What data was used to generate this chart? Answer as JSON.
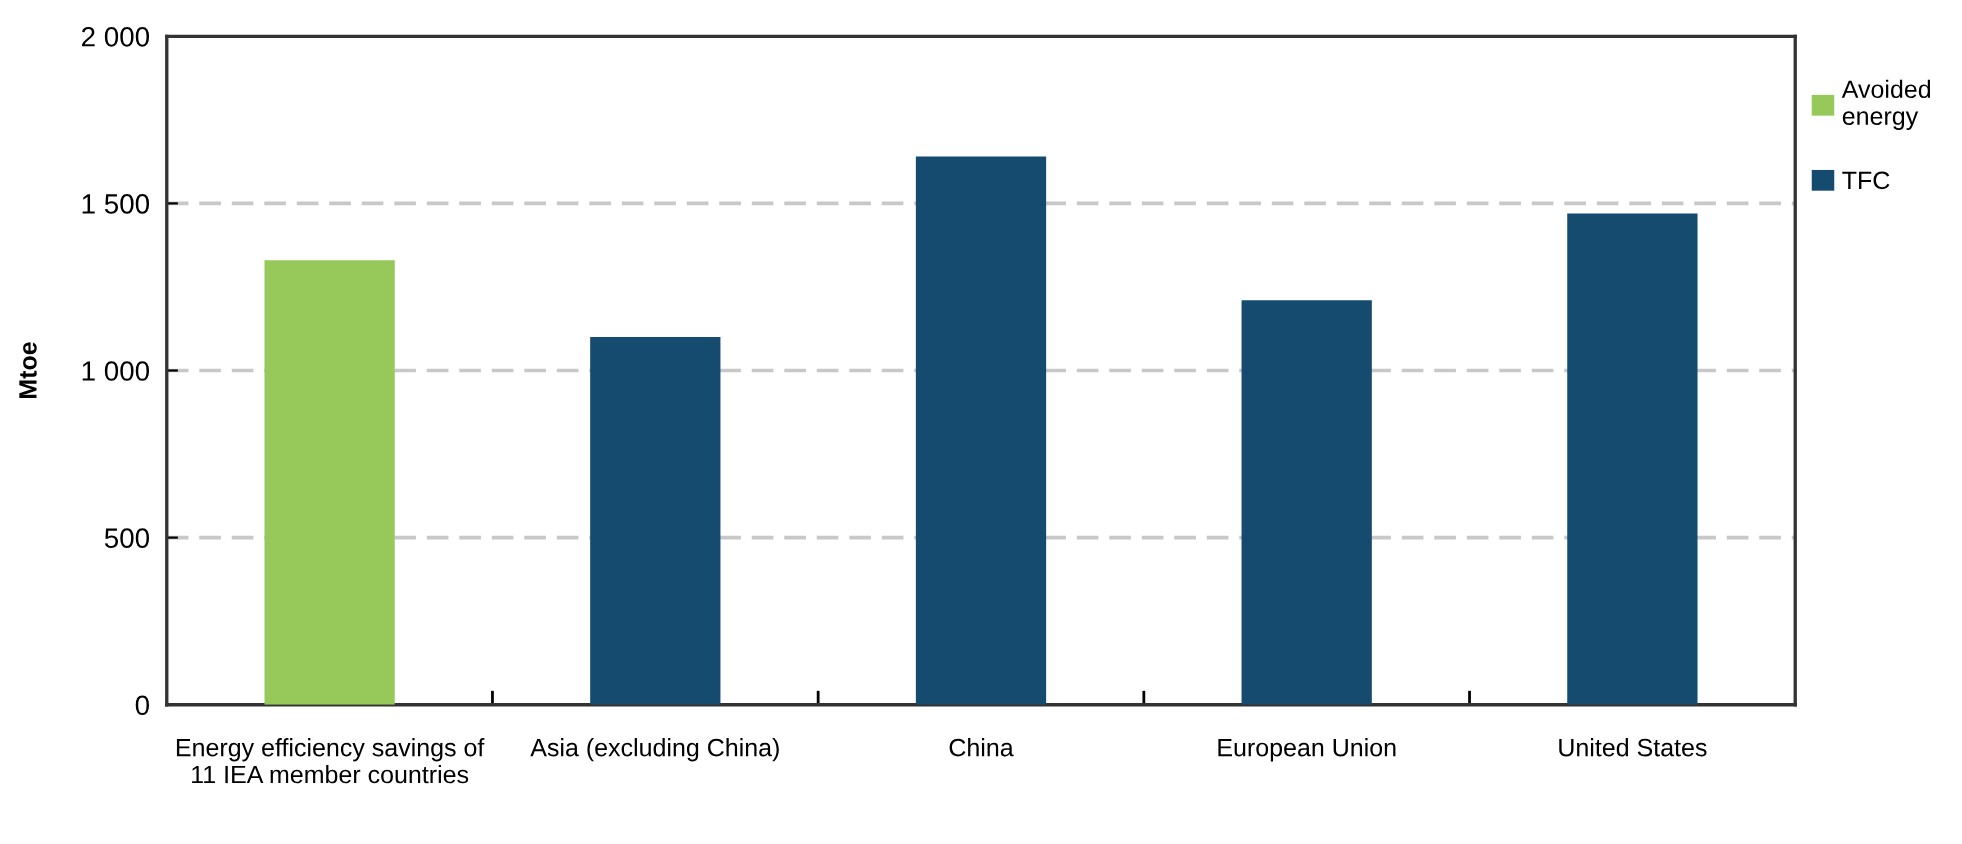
{
  "chart_data": {
    "type": "bar",
    "categories": [
      "Energy efficiency savings of 11 IEA member countries",
      "Asia (excluding China)",
      "China",
      "European Union",
      "United States"
    ],
    "series": [
      {
        "name": "Avoided energy",
        "color": "#97c95a",
        "values": [
          1330,
          null,
          null,
          null,
          null
        ]
      },
      {
        "name": "TFC",
        "color": "#164b70",
        "values": [
          null,
          1100,
          1640,
          1210,
          1470
        ]
      }
    ],
    "ylabel": "Mtoe",
    "ylim": [
      0,
      2000
    ],
    "yticks": [
      0,
      500,
      {
        "value": 1000,
        "label": "1 000"
      },
      {
        "value": 1500,
        "label": "1 500"
      },
      {
        "value": 2000,
        "label": "2 000"
      }
    ],
    "grid": "y",
    "legend": "top right"
  }
}
